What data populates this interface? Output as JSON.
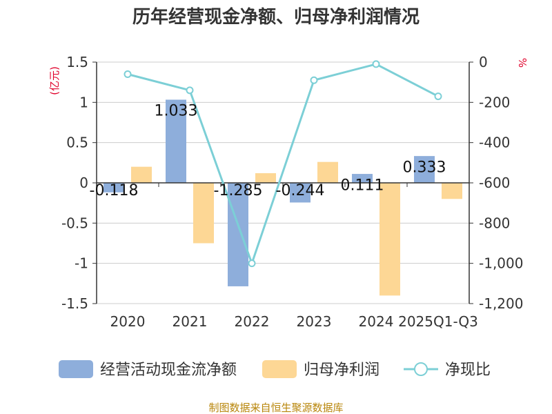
{
  "chart_data": {
    "type": "bar",
    "title": "历年经营现金净额、归母净利润情况",
    "categories": [
      "2020",
      "2021",
      "2022",
      "2023",
      "2024",
      "2025Q1-Q3"
    ],
    "series": [
      {
        "name": "经营活动现金流净额",
        "kind": "bar",
        "axis": "left",
        "color": "#8eaedb",
        "values": [
          -0.118,
          1.033,
          -1.285,
          -0.244,
          0.111,
          0.333
        ],
        "labels": [
          "-0.118",
          "1.033",
          "-1.285",
          "-0.244",
          "0.111",
          "0.333"
        ]
      },
      {
        "name": "归母净利润",
        "kind": "bar",
        "axis": "left",
        "color": "#fdd795",
        "values": [
          0.2,
          -0.75,
          0.12,
          0.26,
          -1.4,
          -0.2
        ]
      },
      {
        "name": "净现比",
        "kind": "line",
        "axis": "right",
        "color": "#7ccfd6",
        "values": [
          -60,
          -140,
          -1000,
          -90,
          -10,
          -170
        ]
      }
    ],
    "yLeft": {
      "label": "(亿元)",
      "min": -1.5,
      "max": 1.5,
      "ticks": [
        1.5,
        1,
        0.5,
        0,
        -0.5,
        -1,
        -1.5
      ],
      "tickLabels": [
        "1.5",
        "1",
        "0.5",
        "0",
        "-0.5",
        "-1",
        "-1.5"
      ]
    },
    "yRight": {
      "label": "%",
      "min": -1200,
      "max": 0,
      "ticks": [
        0,
        -200,
        -400,
        -600,
        -800,
        -1000,
        -1200
      ],
      "tickLabels": [
        "0",
        "-200",
        "-400",
        "-600",
        "-800",
        "-1,000",
        "-1,200"
      ]
    },
    "grid": true,
    "legend": "bottom",
    "source": "制图数据来自恒生聚源数据库"
  }
}
